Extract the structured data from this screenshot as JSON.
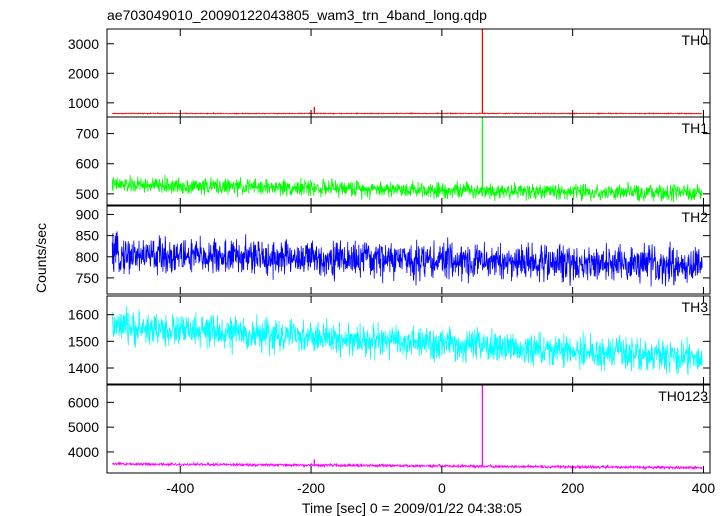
{
  "chart_data": {
    "type": "line",
    "title": "ae703049010_20090122043805_wam3_trn_4band_long.qdp",
    "xlabel": "Time [sec] 0 = 2009/01/22 04:38:05",
    "ylabel": "Counts/sec",
    "xlim": [
      -512,
      410
    ],
    "x_ticks": [
      -400,
      -200,
      0,
      200,
      400
    ],
    "grid": false,
    "panels": [
      {
        "name": "TH0",
        "color": "#ff0000",
        "ylim": [
          520,
          3500
        ],
        "y_ticks": [
          1000,
          2000,
          3000
        ],
        "baseline": 640,
        "noise": 12,
        "trend": 0,
        "spikes": [
          {
            "x": -195,
            "y": 860
          },
          {
            "x": 62,
            "y": 3500
          }
        ]
      },
      {
        "name": "TH1",
        "color": "#00ff00",
        "ylim": [
          463,
          755
        ],
        "y_ticks": [
          500,
          600,
          700
        ],
        "baseline": 530,
        "noise": 22,
        "trend": -30,
        "spikes": [
          {
            "x": 62,
            "y": 755
          }
        ]
      },
      {
        "name": "TH2",
        "color": "#0000ff",
        "ylim": [
          712,
          920
        ],
        "y_ticks": [
          750,
          800,
          850,
          900
        ],
        "baseline": 805,
        "noise": 35,
        "trend": -25,
        "spikes": []
      },
      {
        "name": "TH3",
        "color": "#00ffff",
        "ylim": [
          1340,
          1670
        ],
        "y_ticks": [
          1400,
          1500,
          1600
        ],
        "baseline": 1555,
        "noise": 50,
        "trend": -120,
        "spikes": []
      },
      {
        "name": "TH0123",
        "color": "#ff00ff",
        "ylim": [
          3150,
          6700
        ],
        "y_ticks": [
          4000,
          5000,
          6000
        ],
        "baseline": 3520,
        "noise": 45,
        "trend": -160,
        "spikes": [
          {
            "x": -195,
            "y": 3700
          },
          {
            "x": 62,
            "y": 6700
          }
        ]
      }
    ]
  }
}
